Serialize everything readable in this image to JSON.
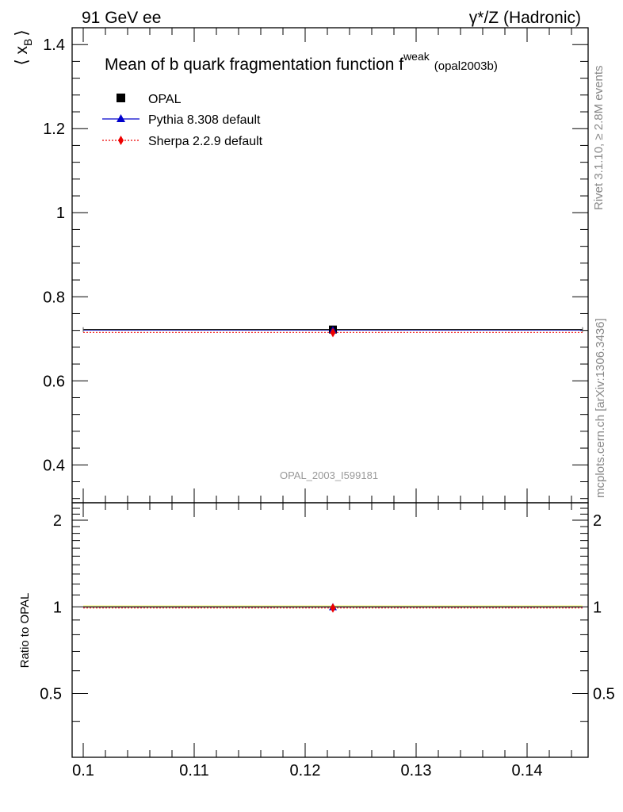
{
  "header": {
    "left": "91 GeV ee",
    "right": "γ*/Z (Hadronic)"
  },
  "title": {
    "main": "Mean of b quark fragmentation function f",
    "superscript": "weak",
    "suffix": "(opal2003b)"
  },
  "side_text": {
    "rivet": "Rivet 3.1.10, ≥ 2.8M events",
    "mcplots": "mcplots.cern.ch [arXiv:1306.3436]"
  },
  "watermark": "OPAL_2003_I599181",
  "legend": {
    "placement": "top-left",
    "entries": [
      {
        "label": "OPAL",
        "marker": "square",
        "color": "#000000",
        "line": "none"
      },
      {
        "label": "Pythia 8.308 default",
        "marker": "triangle",
        "color": "#0000cc",
        "line": "solid"
      },
      {
        "label": "Sherpa 2.2.9 default",
        "marker": "diamond",
        "color": "#ee0000",
        "line": "dotted"
      }
    ]
  },
  "chart_data": [
    {
      "type": "scatter",
      "ylabel_main": "⟨ x",
      "ylabel_sub": "B",
      "ylabel_close": "⟩",
      "xlim": [
        0.099,
        0.1455
      ],
      "ylim": [
        0.31,
        1.44
      ],
      "xticks": [
        0.1,
        0.11,
        0.12,
        0.13,
        0.14
      ],
      "xtick_labels": [
        "0.1",
        "0.11",
        "0.12",
        "0.13",
        "0.14"
      ],
      "yticks": [
        0.4,
        0.6,
        0.8,
        1.0,
        1.2,
        1.4
      ],
      "ytick_labels": [
        "0.4",
        "0.6",
        "0.8",
        "1",
        "1.2",
        "1.4"
      ],
      "series": [
        {
          "name": "OPAL",
          "x": [
            0.1225
          ],
          "y": [
            0.722
          ],
          "x_range": [
            0.1,
            0.145
          ],
          "color": "#000000"
        },
        {
          "name": "Pythia 8.308 default",
          "x": [
            0.1225
          ],
          "y": [
            0.721
          ],
          "x_range": [
            0.1,
            0.145
          ],
          "color": "#0000cc"
        },
        {
          "name": "Sherpa 2.2.9 default",
          "x": [
            0.1225
          ],
          "y": [
            0.715
          ],
          "x_range": [
            0.1,
            0.145
          ],
          "color": "#ee0000"
        }
      ]
    },
    {
      "type": "scatter",
      "ylabel": "Ratio to OPAL",
      "xlim": [
        0.099,
        0.1455
      ],
      "ylim": [
        0.3,
        2.3
      ],
      "yticks": [
        0.5,
        1,
        2
      ],
      "ytick_labels": [
        "0.5",
        "1",
        "2"
      ],
      "series": [
        {
          "name": "Pythia 8.308 default",
          "x": [
            0.1225
          ],
          "y": [
            0.9986
          ],
          "color": "#0000cc"
        },
        {
          "name": "Sherpa 2.2.9 default",
          "x": [
            0.1225
          ],
          "y": [
            0.9903
          ],
          "color": "#ee0000"
        }
      ],
      "band_color": "#ffff00"
    }
  ]
}
